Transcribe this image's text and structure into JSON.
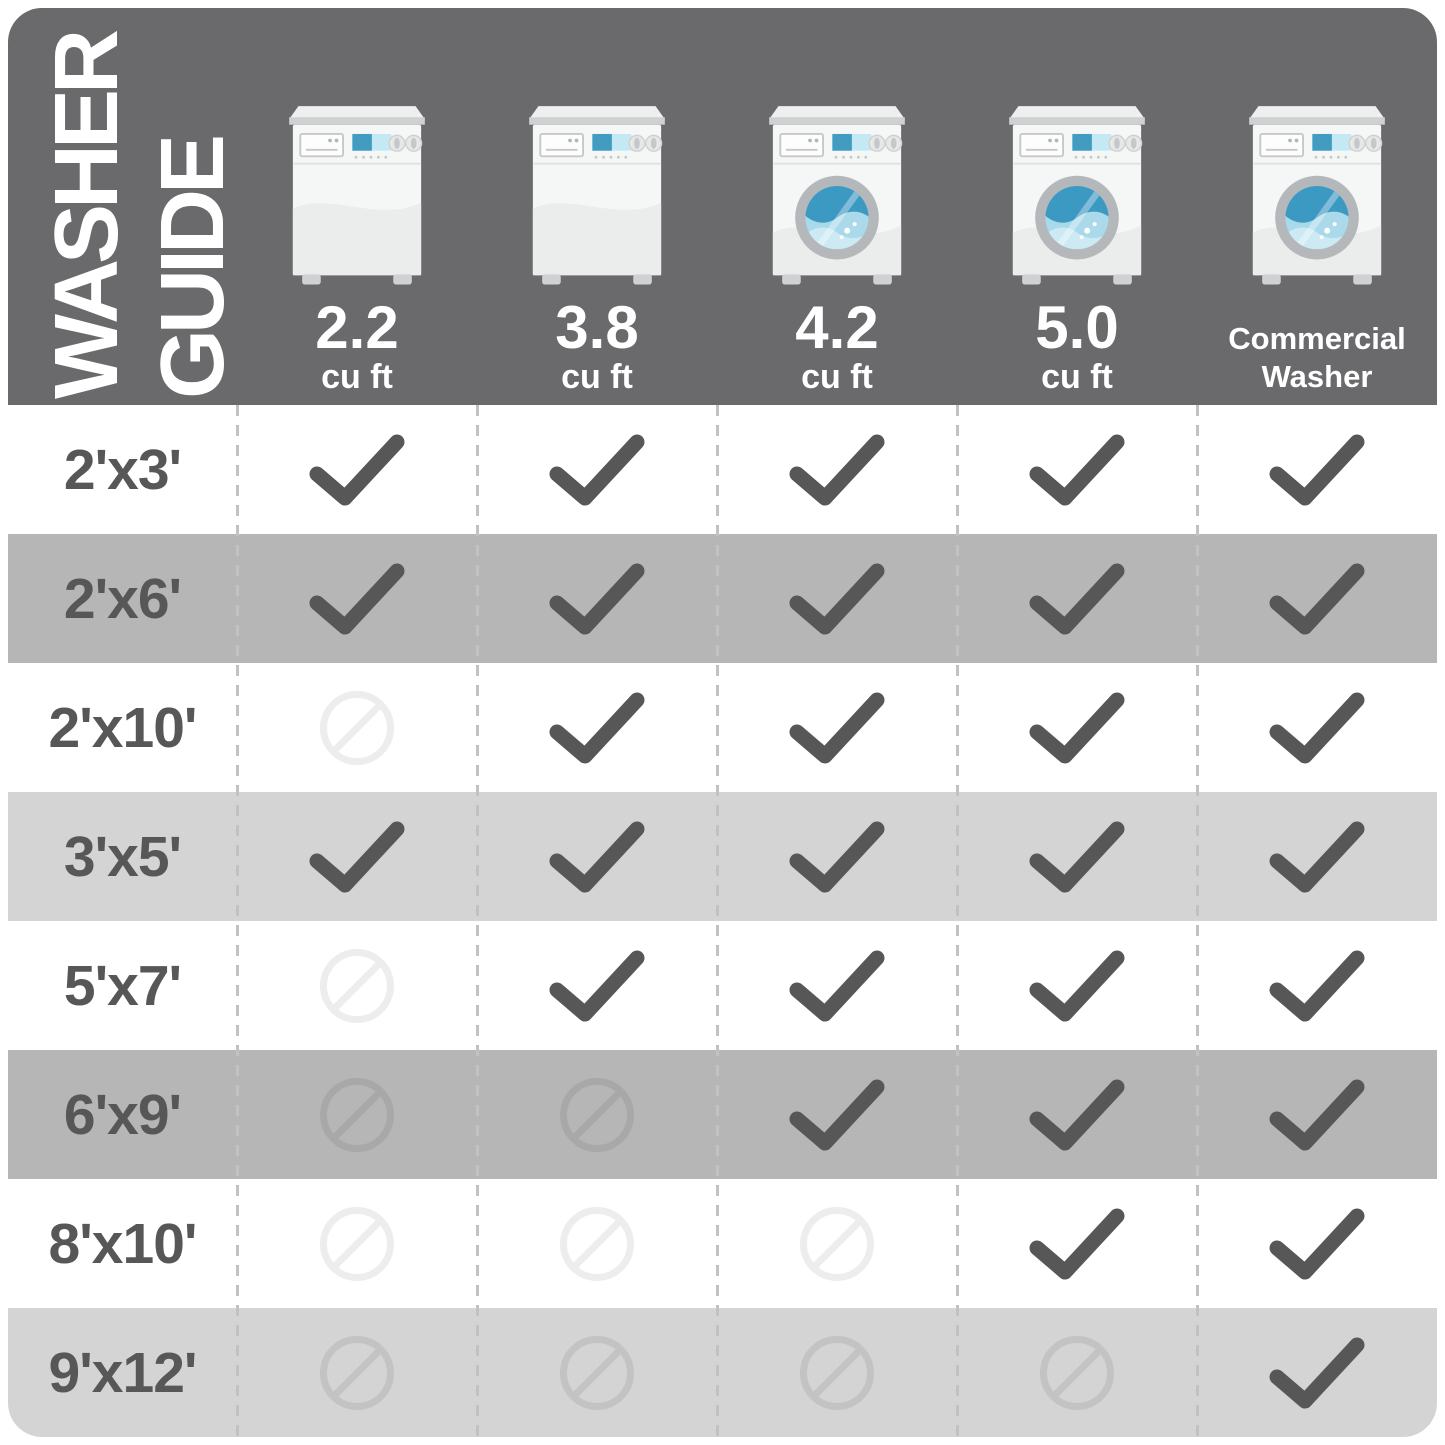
{
  "title": {
    "line1": "WASHER",
    "line2": "GUIDE"
  },
  "header": {
    "columns": [
      {
        "icon": "top-load-washer",
        "label": "2.2",
        "sublabel": "cu ft",
        "style": "number"
      },
      {
        "icon": "top-load-washer",
        "label": "3.8",
        "sublabel": "cu ft",
        "style": "number"
      },
      {
        "icon": "front-load-washer",
        "label": "4.2",
        "sublabel": "cu ft",
        "style": "number"
      },
      {
        "icon": "front-load-washer",
        "label": "5.0",
        "sublabel": "cu ft",
        "style": "number"
      },
      {
        "icon": "front-load-washer",
        "label": "Commercial",
        "sublabel": "Washer",
        "style": "text"
      }
    ]
  },
  "table": {
    "rows": [
      {
        "size": "2'x3'",
        "tone": "white",
        "cells": [
          "yes",
          "yes",
          "yes",
          "yes",
          "yes"
        ]
      },
      {
        "size": "2'x6'",
        "tone": "dark",
        "cells": [
          "yes",
          "yes",
          "yes",
          "yes",
          "yes"
        ]
      },
      {
        "size": "2'x10'",
        "tone": "white",
        "cells": [
          "no",
          "yes",
          "yes",
          "yes",
          "yes"
        ]
      },
      {
        "size": "3'x5'",
        "tone": "light",
        "cells": [
          "yes",
          "yes",
          "yes",
          "yes",
          "yes"
        ]
      },
      {
        "size": "5'x7'",
        "tone": "white",
        "cells": [
          "no",
          "yes",
          "yes",
          "yes",
          "yes"
        ]
      },
      {
        "size": "6'x9'",
        "tone": "dark",
        "cells": [
          "no",
          "no",
          "yes",
          "yes",
          "yes"
        ]
      },
      {
        "size": "8'x10'",
        "tone": "white",
        "cells": [
          "no",
          "no",
          "no",
          "yes",
          "yes"
        ]
      },
      {
        "size": "9'x12'",
        "tone": "light",
        "cells": [
          "no",
          "no",
          "no",
          "no",
          "yes"
        ]
      }
    ]
  },
  "colors": {
    "header_bg": "#6a6a6c",
    "stripe_dark": "#b6b6b6",
    "stripe_light": "#d4d4d4",
    "check": "#575757",
    "row_label": "#575757",
    "dash": "#c2c2c2",
    "no_on_white": "#ededed",
    "no_on_dark": "#a8a8a8",
    "no_on_light": "#c3c3c3"
  },
  "chart_data": {
    "type": "table",
    "title": "WASHER GUIDE",
    "columns": [
      "2.2 cu ft",
      "3.8 cu ft",
      "4.2 cu ft",
      "5.0 cu ft",
      "Commercial Washer"
    ],
    "row_labels": [
      "2'x3'",
      "2'x6'",
      "2'x10'",
      "3'x5'",
      "5'x7'",
      "6'x9'",
      "8'x10'",
      "9'x12'"
    ],
    "values": [
      [
        "yes",
        "yes",
        "yes",
        "yes",
        "yes"
      ],
      [
        "yes",
        "yes",
        "yes",
        "yes",
        "yes"
      ],
      [
        "no",
        "yes",
        "yes",
        "yes",
        "yes"
      ],
      [
        "yes",
        "yes",
        "yes",
        "yes",
        "yes"
      ],
      [
        "no",
        "yes",
        "yes",
        "yes",
        "yes"
      ],
      [
        "no",
        "no",
        "yes",
        "yes",
        "yes"
      ],
      [
        "no",
        "no",
        "no",
        "yes",
        "yes"
      ],
      [
        "no",
        "no",
        "no",
        "no",
        "yes"
      ]
    ],
    "legend_position": "none",
    "grid": "dashed-vertical"
  }
}
